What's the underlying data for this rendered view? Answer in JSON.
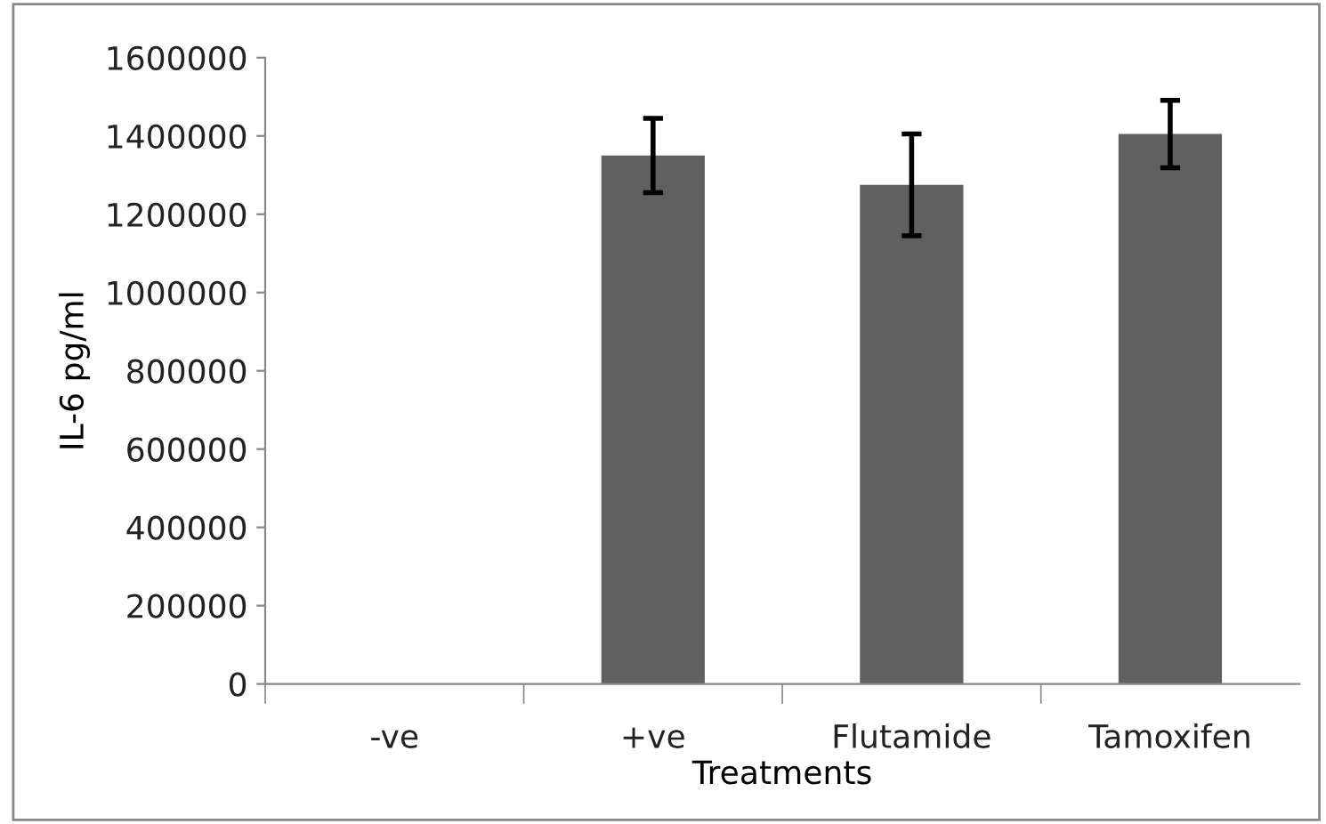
{
  "chart_data": {
    "type": "bar",
    "xlabel": "Treatments",
    "ylabel": "IL-6 pg/ml",
    "categories": [
      "-ve",
      "+ve",
      "Flutamide",
      "Tamoxifen"
    ],
    "values": [
      0,
      1350000,
      1275000,
      1405000
    ],
    "errors": [
      null,
      95000,
      130000,
      86000
    ],
    "color": "#606060",
    "ylim": [
      0,
      1600000
    ],
    "yticks": [
      0,
      200000,
      400000,
      600000,
      800000,
      1000000,
      1200000,
      1400000,
      1600000
    ],
    "grid": false,
    "legend": false
  }
}
